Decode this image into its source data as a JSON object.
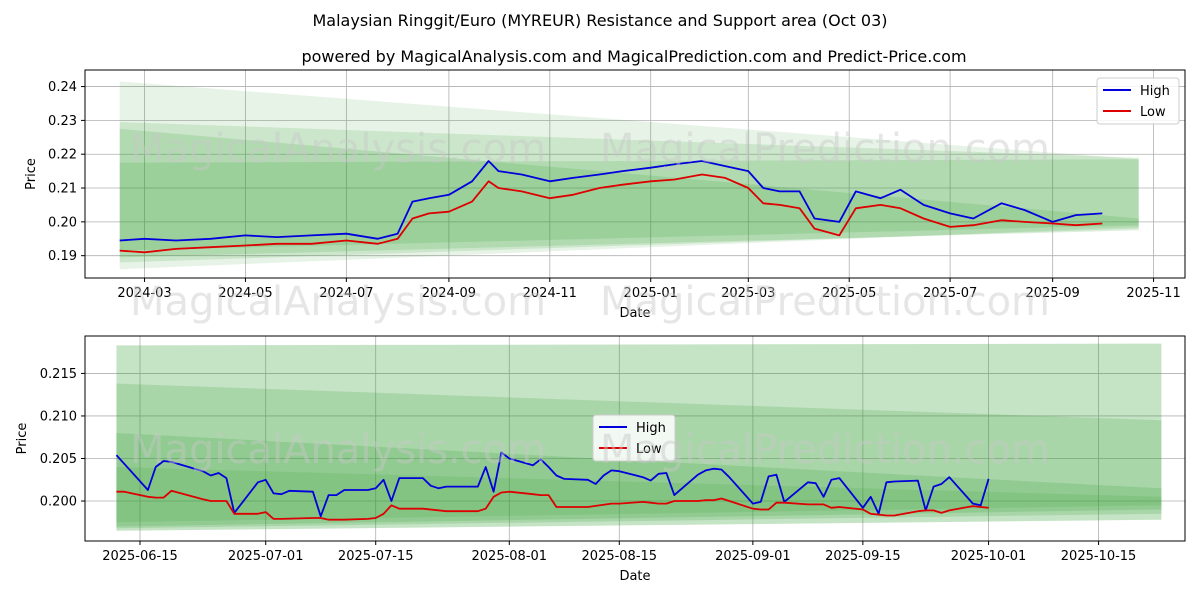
{
  "title": "Malaysian Ringgit/Euro (MYREUR) Resistance and Support area (Oct 03)",
  "subtitle": "powered by MagicalAnalysis.com and MagicalPrediction.com and Predict-Price.com",
  "watermarks": [
    "MagicalAnalysis.com",
    "MagicalPrediction.com"
  ],
  "colors": {
    "high": "#0000dd",
    "low": "#dd0000",
    "band": "#2e9a2e",
    "grid": "#b0b0b0"
  },
  "chart_data": [
    {
      "type": "line",
      "xlabel": "Date",
      "ylabel": "Price",
      "grid": true,
      "legend": "top-right",
      "xlim": [
        "2024-01-25",
        "2025-11-20"
      ],
      "ylim": [
        0.1834,
        0.2449
      ],
      "xticks": [
        "2024-03-01",
        "2024-05-01",
        "2024-07-01",
        "2024-09-01",
        "2024-11-01",
        "2025-01-01",
        "2025-03-01",
        "2025-05-01",
        "2025-07-01",
        "2025-09-01",
        "2025-11-01"
      ],
      "xtick_labels": [
        "2024-03",
        "2024-05",
        "2024-07",
        "2024-09",
        "2024-11",
        "2025-01",
        "2025-03",
        "2025-05",
        "2025-07",
        "2025-09",
        "2025-11"
      ],
      "yticks": [
        0.19,
        0.2,
        0.21,
        0.22,
        0.23,
        0.24
      ],
      "ytick_labels": [
        "0.19",
        "0.20",
        "0.21",
        "0.22",
        "0.23",
        "0.24"
      ],
      "bands": [
        {
          "x": [
            "2024-02-15",
            "2025-10-23"
          ],
          "upper": [
            0.2415,
            0.2185
          ],
          "lower": [
            0.186,
            0.1985
          ],
          "opacity": 0.12
        },
        {
          "x": [
            "2024-02-15",
            "2025-10-23"
          ],
          "upper": [
            0.2295,
            0.219
          ],
          "lower": [
            0.188,
            0.198
          ],
          "opacity": 0.14
        },
        {
          "x": [
            "2024-02-15",
            "2025-10-23"
          ],
          "upper": [
            0.2275,
            0.201
          ],
          "lower": [
            0.1895,
            0.1975
          ],
          "opacity": 0.16
        },
        {
          "x": [
            "2024-02-15",
            "2025-10-23"
          ],
          "upper": [
            0.2175,
            0.2185
          ],
          "lower": [
            0.1915,
            0.199
          ],
          "opacity": 0.16
        }
      ],
      "series": [
        {
          "name": "High",
          "x": [
            "2024-02-15",
            "2024-03-01",
            "2024-03-20",
            "2024-04-10",
            "2024-05-01",
            "2024-05-20",
            "2024-06-10",
            "2024-07-01",
            "2024-07-20",
            "2024-08-01",
            "2024-08-10",
            "2024-08-20",
            "2024-09-01",
            "2024-09-15",
            "2024-09-25",
            "2024-10-01",
            "2024-10-15",
            "2024-11-01",
            "2024-11-15",
            "2024-12-01",
            "2024-12-15",
            "2025-01-01",
            "2025-01-15",
            "2025-02-01",
            "2025-02-15",
            "2025-03-01",
            "2025-03-10",
            "2025-03-20",
            "2025-04-01",
            "2025-04-10",
            "2025-04-25",
            "2025-05-05",
            "2025-05-20",
            "2025-06-01",
            "2025-06-15",
            "2025-07-01",
            "2025-07-15",
            "2025-08-01",
            "2025-08-15",
            "2025-09-01",
            "2025-09-15",
            "2025-10-01"
          ],
          "values": [
            0.1945,
            0.195,
            0.1945,
            0.195,
            0.196,
            0.1955,
            0.196,
            0.1965,
            0.195,
            0.1965,
            0.206,
            0.207,
            0.208,
            0.212,
            0.218,
            0.215,
            0.214,
            0.212,
            0.213,
            0.214,
            0.215,
            0.216,
            0.217,
            0.218,
            0.2165,
            0.215,
            0.21,
            0.209,
            0.209,
            0.201,
            0.2,
            0.209,
            0.207,
            0.2095,
            0.205,
            0.2025,
            0.201,
            0.2055,
            0.2035,
            0.2,
            0.202,
            0.2025
          ]
        },
        {
          "name": "Low",
          "x": [
            "2024-02-15",
            "2024-03-01",
            "2024-03-20",
            "2024-04-10",
            "2024-05-01",
            "2024-05-20",
            "2024-06-10",
            "2024-07-01",
            "2024-07-20",
            "2024-08-01",
            "2024-08-10",
            "2024-08-20",
            "2024-09-01",
            "2024-09-15",
            "2024-09-25",
            "2024-10-01",
            "2024-10-15",
            "2024-11-01",
            "2024-11-15",
            "2024-12-01",
            "2024-12-15",
            "2025-01-01",
            "2025-01-15",
            "2025-02-01",
            "2025-02-15",
            "2025-03-01",
            "2025-03-10",
            "2025-03-20",
            "2025-04-01",
            "2025-04-10",
            "2025-04-25",
            "2025-05-05",
            "2025-05-20",
            "2025-06-01",
            "2025-06-15",
            "2025-07-01",
            "2025-07-15",
            "2025-08-01",
            "2025-08-15",
            "2025-09-01",
            "2025-09-15",
            "2025-10-01"
          ],
          "values": [
            0.1915,
            0.191,
            0.192,
            0.1925,
            0.193,
            0.1935,
            0.1935,
            0.1945,
            0.1935,
            0.195,
            0.201,
            0.2025,
            0.203,
            0.206,
            0.212,
            0.21,
            0.209,
            0.207,
            0.208,
            0.21,
            0.211,
            0.212,
            0.2125,
            0.214,
            0.213,
            0.21,
            0.2055,
            0.205,
            0.204,
            0.198,
            0.196,
            0.204,
            0.205,
            0.204,
            0.201,
            0.1985,
            0.199,
            0.2005,
            0.2,
            0.1995,
            0.199,
            0.1995
          ]
        }
      ]
    },
    {
      "type": "line",
      "xlabel": "Date",
      "ylabel": "Price",
      "grid": true,
      "legend": "center",
      "xlim": [
        "2025-06-08",
        "2025-10-26"
      ],
      "ylim": [
        0.1953,
        0.2194
      ],
      "xticks": [
        "2025-06-15",
        "2025-07-01",
        "2025-07-15",
        "2025-08-01",
        "2025-08-15",
        "2025-09-01",
        "2025-09-15",
        "2025-10-01",
        "2025-10-15"
      ],
      "xtick_labels": [
        "2025-06-15",
        "2025-07-01",
        "2025-07-15",
        "2025-08-01",
        "2025-08-15",
        "2025-09-01",
        "2025-09-15",
        "2025-10-01",
        "2025-10-15"
      ],
      "yticks": [
        0.2,
        0.205,
        0.21,
        0.215
      ],
      "ytick_labels": [
        "0.200",
        "0.205",
        "0.210",
        "0.215"
      ],
      "bands": [
        {
          "x": [
            "2025-06-12",
            "2025-10-23"
          ],
          "upper": [
            0.2183,
            0.2185
          ],
          "lower": [
            0.1965,
            0.1978
          ],
          "opacity": 0.28
        },
        {
          "x": [
            "2025-06-12",
            "2025-10-23"
          ],
          "upper": [
            0.2138,
            0.2095
          ],
          "lower": [
            0.1968,
            0.1985
          ],
          "opacity": 0.18
        },
        {
          "x": [
            "2025-06-12",
            "2025-10-23"
          ],
          "upper": [
            0.208,
            0.2015
          ],
          "lower": [
            0.197,
            0.199
          ],
          "opacity": 0.18
        },
        {
          "x": [
            "2025-06-12",
            "2025-10-23"
          ],
          "upper": [
            0.204,
            0.2005
          ],
          "lower": [
            0.1975,
            0.1995
          ],
          "opacity": 0.14
        }
      ],
      "series": [
        {
          "name": "High",
          "x": [
            "2025-06-12",
            "2025-06-16",
            "2025-06-17",
            "2025-06-18",
            "2025-06-19",
            "2025-06-23",
            "2025-06-24",
            "2025-06-25",
            "2025-06-26",
            "2025-06-27",
            "2025-06-30",
            "2025-07-01",
            "2025-07-02",
            "2025-07-03",
            "2025-07-04",
            "2025-07-07",
            "2025-07-08",
            "2025-07-09",
            "2025-07-10",
            "2025-07-11",
            "2025-07-14",
            "2025-07-15",
            "2025-07-16",
            "2025-07-17",
            "2025-07-18",
            "2025-07-21",
            "2025-07-22",
            "2025-07-23",
            "2025-07-24",
            "2025-07-25",
            "2025-07-28",
            "2025-07-29",
            "2025-07-30",
            "2025-07-31",
            "2025-08-01",
            "2025-08-04",
            "2025-08-05",
            "2025-08-06",
            "2025-08-07",
            "2025-08-08",
            "2025-08-11",
            "2025-08-12",
            "2025-08-13",
            "2025-08-14",
            "2025-08-15",
            "2025-08-18",
            "2025-08-19",
            "2025-08-20",
            "2025-08-21",
            "2025-08-22",
            "2025-08-25",
            "2025-08-26",
            "2025-08-27",
            "2025-08-28",
            "2025-08-29",
            "2025-09-01",
            "2025-09-02",
            "2025-09-03",
            "2025-09-04",
            "2025-09-05",
            "2025-09-08",
            "2025-09-09",
            "2025-09-10",
            "2025-09-11",
            "2025-09-12",
            "2025-09-15",
            "2025-09-16",
            "2025-09-17",
            "2025-09-18",
            "2025-09-19",
            "2025-09-22",
            "2025-09-23",
            "2025-09-24",
            "2025-09-25",
            "2025-09-26",
            "2025-09-29",
            "2025-09-30",
            "2025-10-01"
          ],
          "values": [
            0.2054,
            0.2013,
            0.204,
            0.2047,
            0.2046,
            0.2035,
            0.203,
            0.2033,
            0.2027,
            0.1986,
            0.2022,
            0.2025,
            0.2009,
            0.2008,
            0.2012,
            0.2011,
            0.1982,
            0.2007,
            0.2007,
            0.2013,
            0.2013,
            0.2015,
            0.2025,
            0.2,
            0.2027,
            0.2027,
            0.2018,
            0.2015,
            0.2017,
            0.2017,
            0.2017,
            0.204,
            0.2011,
            0.2057,
            0.205,
            0.2042,
            0.2049,
            0.204,
            0.203,
            0.2026,
            0.2025,
            0.202,
            0.203,
            0.2036,
            0.2035,
            0.2028,
            0.2024,
            0.2032,
            0.2033,
            0.2007,
            0.2031,
            0.2036,
            0.2038,
            0.2037,
            0.2028,
            0.1997,
            0.1999,
            0.2029,
            0.2031,
            0.1999,
            0.2022,
            0.2021,
            0.2005,
            0.2025,
            0.2027,
            0.1992,
            0.2005,
            0.1985,
            0.2022,
            0.2023,
            0.2024,
            0.1989,
            0.2017,
            0.202,
            0.2028,
            0.1997,
            0.1995,
            0.2026
          ]
        },
        {
          "name": "Low",
          "x": [
            "2025-06-12",
            "2025-06-13",
            "2025-06-16",
            "2025-06-17",
            "2025-06-18",
            "2025-06-19",
            "2025-06-23",
            "2025-06-24",
            "2025-06-25",
            "2025-06-26",
            "2025-06-27",
            "2025-06-30",
            "2025-07-01",
            "2025-07-02",
            "2025-07-03",
            "2025-07-07",
            "2025-07-08",
            "2025-07-09",
            "2025-07-10",
            "2025-07-11",
            "2025-07-14",
            "2025-07-15",
            "2025-07-16",
            "2025-07-17",
            "2025-07-18",
            "2025-07-21",
            "2025-07-24",
            "2025-07-28",
            "2025-07-29",
            "2025-07-30",
            "2025-07-31",
            "2025-08-01",
            "2025-08-04",
            "2025-08-05",
            "2025-08-06",
            "2025-08-07",
            "2025-08-11",
            "2025-08-14",
            "2025-08-15",
            "2025-08-18",
            "2025-08-19",
            "2025-08-20",
            "2025-08-21",
            "2025-08-22",
            "2025-08-25",
            "2025-08-26",
            "2025-08-27",
            "2025-08-28",
            "2025-08-29",
            "2025-09-01",
            "2025-09-02",
            "2025-09-03",
            "2025-09-04",
            "2025-09-05",
            "2025-09-08",
            "2025-09-09",
            "2025-09-10",
            "2025-09-11",
            "2025-09-12",
            "2025-09-15",
            "2025-09-16",
            "2025-09-17",
            "2025-09-18",
            "2025-09-19",
            "2025-09-22",
            "2025-09-23",
            "2025-09-24",
            "2025-09-25",
            "2025-09-26",
            "2025-09-29",
            "2025-09-30",
            "2025-10-01"
          ],
          "values": [
            0.2011,
            0.2011,
            0.2005,
            0.2004,
            0.2004,
            0.2012,
            0.2002,
            0.2,
            0.2,
            0.2,
            0.1985,
            0.1985,
            0.1987,
            0.1979,
            0.1979,
            0.198,
            0.198,
            0.1978,
            0.1978,
            0.1978,
            0.1979,
            0.198,
            0.1985,
            0.1995,
            0.1991,
            0.1991,
            0.1988,
            0.1988,
            0.1991,
            0.2005,
            0.201,
            0.2011,
            0.2008,
            0.2007,
            0.2007,
            0.1993,
            0.1993,
            0.1997,
            0.1997,
            0.1999,
            0.1998,
            0.1997,
            0.1997,
            0.2,
            0.2,
            0.2001,
            0.2001,
            0.2003,
            0.2,
            0.1991,
            0.199,
            0.199,
            0.1998,
            0.1998,
            0.1996,
            0.1996,
            0.1996,
            0.1992,
            0.1993,
            0.199,
            0.1985,
            0.1984,
            0.1983,
            0.1983,
            0.1988,
            0.1989,
            0.1989,
            0.1986,
            0.1989,
            0.1994,
            0.1993,
            0.1992
          ]
        }
      ]
    }
  ]
}
